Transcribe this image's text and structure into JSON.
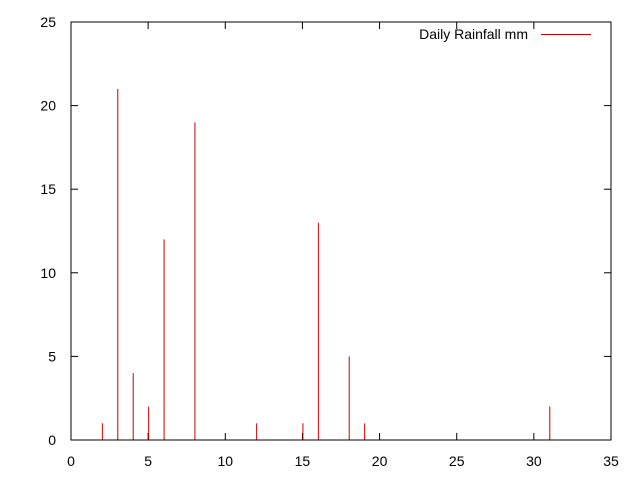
{
  "chart_data": {
    "type": "bar",
    "style": "impulses",
    "title": "",
    "xlabel": "",
    "ylabel": "",
    "xlim": [
      0,
      35
    ],
    "ylim": [
      0,
      25
    ],
    "x_ticks": [
      0,
      5,
      10,
      15,
      20,
      25,
      30,
      35
    ],
    "y_ticks": [
      0,
      5,
      10,
      15,
      20,
      25
    ],
    "grid": false,
    "legend_position": "top-right",
    "series": [
      {
        "name": "Daily Rainfall mm",
        "color": "#cc0000",
        "x": [
          2,
          3,
          4,
          5,
          6,
          8,
          12,
          15,
          16,
          18,
          19,
          31
        ],
        "y": [
          1,
          21,
          4,
          2,
          12,
          19,
          1,
          1,
          13,
          5,
          1,
          2
        ]
      }
    ]
  }
}
